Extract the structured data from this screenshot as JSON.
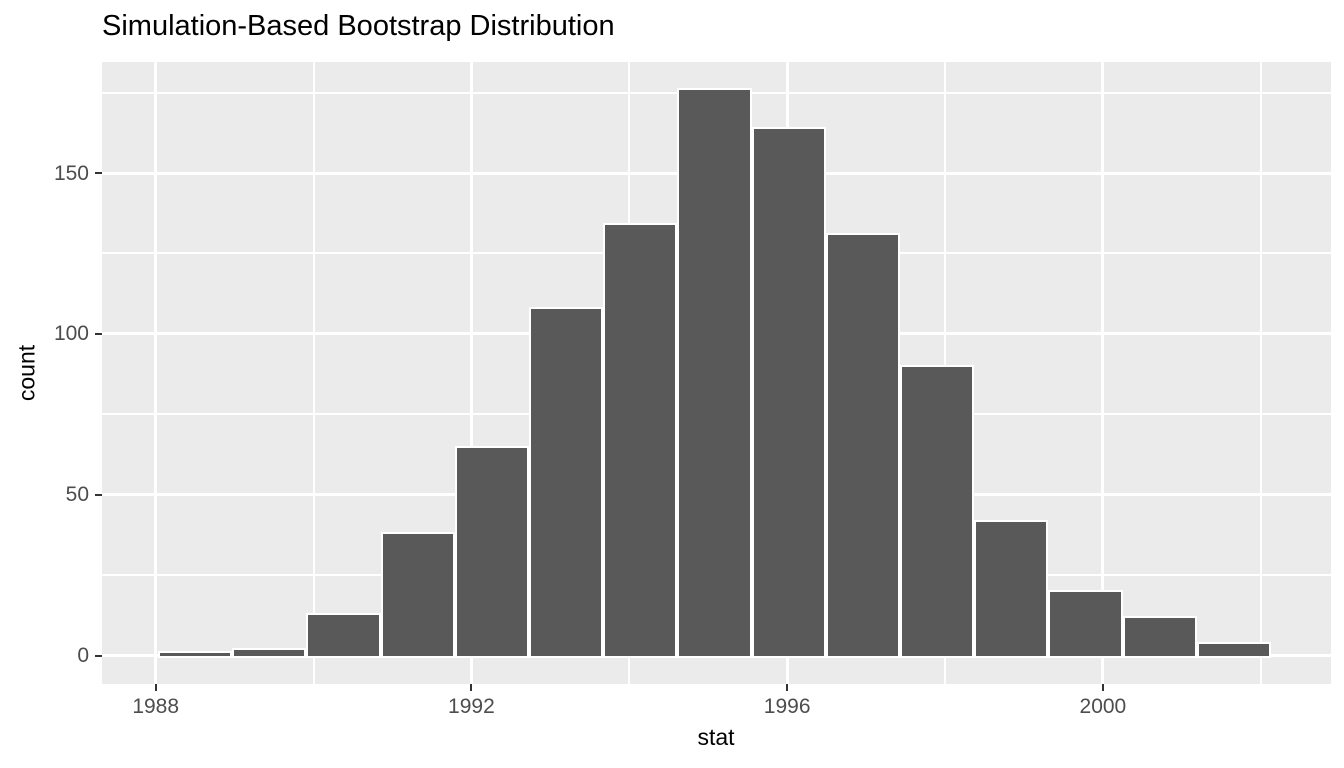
{
  "title": "Simulation-Based Bootstrap Distribution",
  "colors": {
    "page_bg": "#FFFFFF",
    "panel_bg": "#EBEBEB",
    "bar_fill": "#595959",
    "bar_stroke": "#FFFFFF",
    "gridline": "#FFFFFF",
    "axis_text": "#4D4D4D",
    "tick_mark": "#333333",
    "title_text": "#000000"
  },
  "chart_data": {
    "type": "bar",
    "subtype": "histogram",
    "title": "Simulation-Based Bootstrap Distribution",
    "xlabel": "stat",
    "ylabel": "count",
    "grid": "on",
    "legend": "none",
    "x_domain": [
      1987.32,
      2002.89
    ],
    "y_domain": [
      -8.8,
      184.5
    ],
    "x_ticks": [
      1988,
      1992,
      1996,
      2000
    ],
    "y_ticks": [
      0,
      50,
      100,
      150
    ],
    "x_minor_gridlines": [
      1990,
      1994,
      1998,
      2002
    ],
    "y_minor_gridlines": [
      25,
      75,
      125,
      175
    ],
    "bin_width": 0.94,
    "bins": [
      {
        "start": 1988.03,
        "end": 1988.97,
        "count": 1
      },
      {
        "start": 1988.97,
        "end": 1989.91,
        "count": 2
      },
      {
        "start": 1989.91,
        "end": 1990.85,
        "count": 13
      },
      {
        "start": 1990.85,
        "end": 1991.79,
        "count": 38
      },
      {
        "start": 1991.79,
        "end": 1992.73,
        "count": 65
      },
      {
        "start": 1992.73,
        "end": 1993.67,
        "count": 108
      },
      {
        "start": 1993.67,
        "end": 1994.61,
        "count": 134
      },
      {
        "start": 1994.61,
        "end": 1995.55,
        "count": 176
      },
      {
        "start": 1995.55,
        "end": 1996.49,
        "count": 164
      },
      {
        "start": 1996.49,
        "end": 1997.43,
        "count": 131
      },
      {
        "start": 1997.43,
        "end": 1998.37,
        "count": 90
      },
      {
        "start": 1998.37,
        "end": 1999.31,
        "count": 42
      },
      {
        "start": 1999.31,
        "end": 2000.25,
        "count": 20
      },
      {
        "start": 2000.25,
        "end": 2001.19,
        "count": 12
      },
      {
        "start": 2001.19,
        "end": 2002.13,
        "count": 4
      }
    ]
  }
}
